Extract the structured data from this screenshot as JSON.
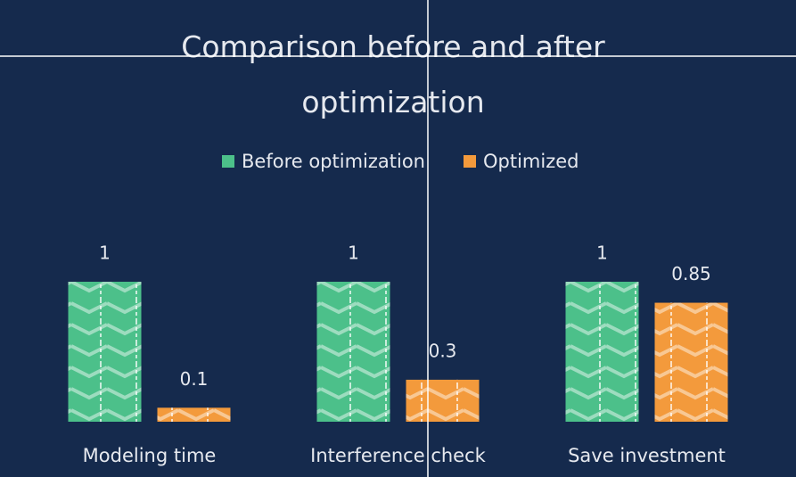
{
  "chart_data": {
    "type": "bar",
    "title": "Comparison before and after optimization",
    "categories": [
      "Modeling time",
      "Interference check",
      "Save investment"
    ],
    "series": [
      {
        "name": "Before optimization",
        "color": "#4cc08a",
        "values": [
          1,
          1,
          1
        ]
      },
      {
        "name": "Optimized",
        "color": "#f39a3c",
        "values": [
          0.1,
          0.3,
          0.85
        ]
      }
    ]
  }
}
